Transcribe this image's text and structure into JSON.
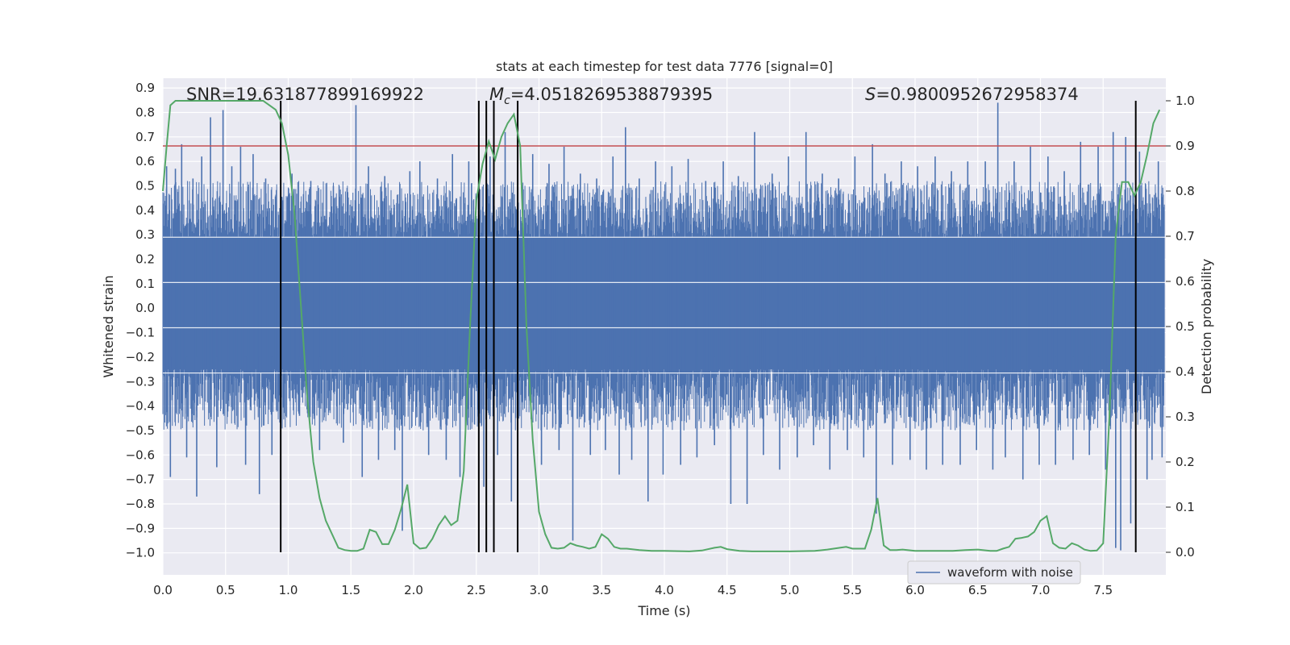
{
  "chart_data": {
    "type": "line",
    "title": "stats at each timestep for test data 7776 [signal=0]",
    "xlabel": "Time (s)",
    "ylabel_left": "Whitened strain",
    "ylabel_right": "Detection probability",
    "xlim": [
      0.0,
      8.0
    ],
    "ylim_left": [
      -1.09,
      0.94
    ],
    "ylim_right": [
      -0.05,
      1.05
    ],
    "x_ticks": [
      "0.0",
      "0.5",
      "1.0",
      "1.5",
      "2.0",
      "2.5",
      "3.0",
      "3.5",
      "4.0",
      "4.5",
      "5.0",
      "5.5",
      "6.0",
      "6.5",
      "7.0",
      "7.5"
    ],
    "x_tick_values": [
      0.0,
      0.5,
      1.0,
      1.5,
      2.0,
      2.5,
      3.0,
      3.5,
      4.0,
      4.5,
      5.0,
      5.5,
      6.0,
      6.5,
      7.0,
      7.5
    ],
    "y_left_ticks": [
      "0.9",
      "0.8",
      "0.7",
      "0.6",
      "0.5",
      "0.4",
      "0.3",
      "0.2",
      "0.1",
      "0.0",
      "−0.1",
      "−0.2",
      "−0.3",
      "−0.4",
      "−0.5",
      "−0.6",
      "−0.7",
      "−0.8",
      "−0.9",
      "−1.0"
    ],
    "y_left_tick_values": [
      0.9,
      0.8,
      0.7,
      0.6,
      0.5,
      0.4,
      0.3,
      0.2,
      0.1,
      0.0,
      -0.1,
      -0.2,
      -0.3,
      -0.4,
      -0.5,
      -0.6,
      -0.7,
      -0.8,
      -0.9,
      -1.0
    ],
    "y_right_ticks": [
      "1.0",
      "0.9",
      "0.8",
      "0.7",
      "0.6",
      "0.5",
      "0.4",
      "0.3",
      "0.2",
      "0.1",
      "0.0"
    ],
    "y_right_tick_values": [
      1.0,
      0.9,
      0.8,
      0.7,
      0.6,
      0.5,
      0.4,
      0.3,
      0.2,
      0.1,
      0.0
    ],
    "annotations": {
      "snr": "SNR=19.631877899169922",
      "mc_symbol": "M",
      "mc_sub": "c",
      "mc_value": "=4.0518269538879395",
      "s_symbol": "S",
      "s_value": "=0.9800952672958374"
    },
    "legend": [
      {
        "label": "waveform with noise",
        "color": "#4c72b0",
        "position": "lower-right"
      }
    ],
    "threshold_line": {
      "value_right": 0.9,
      "color": "#c44e52"
    },
    "vertical_lines_x": [
      0.94,
      2.52,
      2.58,
      2.64,
      2.83,
      7.76
    ],
    "waveform": {
      "name": "waveform with noise",
      "color": "#4c72b0",
      "dense_band": [
        -0.25,
        0.29
      ],
      "spikes": [
        {
          "x": 0.03,
          "y": 0.58
        },
        {
          "x": 0.06,
          "y": -0.69
        },
        {
          "x": 0.1,
          "y": 0.57
        },
        {
          "x": 0.15,
          "y": 0.67
        },
        {
          "x": 0.19,
          "y": -0.61
        },
        {
          "x": 0.24,
          "y": 0.53
        },
        {
          "x": 0.27,
          "y": -0.77
        },
        {
          "x": 0.31,
          "y": 0.62
        },
        {
          "x": 0.38,
          "y": 0.78
        },
        {
          "x": 0.43,
          "y": -0.65
        },
        {
          "x": 0.48,
          "y": 0.81
        },
        {
          "x": 0.55,
          "y": 0.58
        },
        {
          "x": 0.62,
          "y": 0.66
        },
        {
          "x": 0.66,
          "y": -0.64
        },
        {
          "x": 0.72,
          "y": 0.63
        },
        {
          "x": 0.77,
          "y": -0.76
        },
        {
          "x": 0.82,
          "y": 0.53
        },
        {
          "x": 0.87,
          "y": -0.6
        },
        {
          "x": 1.03,
          "y": 0.55
        },
        {
          "x": 1.09,
          "y": -0.44
        },
        {
          "x": 1.18,
          "y": 0.52
        },
        {
          "x": 1.25,
          "y": -0.58
        },
        {
          "x": 1.36,
          "y": 0.5
        },
        {
          "x": 1.44,
          "y": -0.55
        },
        {
          "x": 1.54,
          "y": 0.83
        },
        {
          "x": 1.59,
          "y": -0.69
        },
        {
          "x": 1.64,
          "y": 0.58
        },
        {
          "x": 1.72,
          "y": -0.62
        },
        {
          "x": 1.77,
          "y": 0.54
        },
        {
          "x": 1.85,
          "y": -0.58
        },
        {
          "x": 1.91,
          "y": -0.91
        },
        {
          "x": 1.97,
          "y": 0.56
        },
        {
          "x": 2.05,
          "y": 0.6
        },
        {
          "x": 2.12,
          "y": -0.6
        },
        {
          "x": 2.19,
          "y": 0.53
        },
        {
          "x": 2.26,
          "y": -0.62
        },
        {
          "x": 2.31,
          "y": 0.63
        },
        {
          "x": 2.37,
          "y": -0.69
        },
        {
          "x": 2.44,
          "y": 0.6
        },
        {
          "x": 2.56,
          "y": -0.73
        },
        {
          "x": 2.61,
          "y": 0.62
        },
        {
          "x": 2.67,
          "y": -0.6
        },
        {
          "x": 2.73,
          "y": 0.72
        },
        {
          "x": 2.78,
          "y": -0.79
        },
        {
          "x": 2.95,
          "y": 0.63
        },
        {
          "x": 3.02,
          "y": -0.64
        },
        {
          "x": 3.08,
          "y": 0.59
        },
        {
          "x": 3.16,
          "y": -0.58
        },
        {
          "x": 3.2,
          "y": 0.66
        },
        {
          "x": 3.27,
          "y": -0.95
        },
        {
          "x": 3.33,
          "y": 0.55
        },
        {
          "x": 3.41,
          "y": -0.6
        },
        {
          "x": 3.46,
          "y": 0.53
        },
        {
          "x": 3.53,
          "y": -0.58
        },
        {
          "x": 3.59,
          "y": 0.62
        },
        {
          "x": 3.64,
          "y": -0.68
        },
        {
          "x": 3.69,
          "y": 0.74
        },
        {
          "x": 3.74,
          "y": -0.62
        },
        {
          "x": 3.8,
          "y": 0.53
        },
        {
          "x": 3.87,
          "y": -0.79
        },
        {
          "x": 3.93,
          "y": 0.6
        },
        {
          "x": 3.99,
          "y": -0.68
        },
        {
          "x": 4.06,
          "y": 0.58
        },
        {
          "x": 4.13,
          "y": -0.64
        },
        {
          "x": 4.19,
          "y": 0.61
        },
        {
          "x": 4.26,
          "y": -0.61
        },
        {
          "x": 4.33,
          "y": 0.52
        },
        {
          "x": 4.4,
          "y": -0.56
        },
        {
          "x": 4.47,
          "y": 0.6
        },
        {
          "x": 4.53,
          "y": -0.8
        },
        {
          "x": 4.59,
          "y": 0.54
        },
        {
          "x": 4.66,
          "y": -0.8
        },
        {
          "x": 4.72,
          "y": 0.72
        },
        {
          "x": 4.79,
          "y": -0.6
        },
        {
          "x": 4.86,
          "y": 0.55
        },
        {
          "x": 4.92,
          "y": -0.66
        },
        {
          "x": 4.99,
          "y": 0.62
        },
        {
          "x": 5.06,
          "y": -0.61
        },
        {
          "x": 5.13,
          "y": 0.72
        },
        {
          "x": 5.19,
          "y": -0.56
        },
        {
          "x": 5.26,
          "y": 0.55
        },
        {
          "x": 5.32,
          "y": -0.66
        },
        {
          "x": 5.39,
          "y": 0.53
        },
        {
          "x": 5.46,
          "y": -0.58
        },
        {
          "x": 5.52,
          "y": 0.62
        },
        {
          "x": 5.59,
          "y": -0.61
        },
        {
          "x": 5.66,
          "y": 0.67
        },
        {
          "x": 5.69,
          "y": -0.84
        },
        {
          "x": 5.76,
          "y": 0.55
        },
        {
          "x": 5.82,
          "y": -0.64
        },
        {
          "x": 5.89,
          "y": 0.6
        },
        {
          "x": 5.96,
          "y": -0.62
        },
        {
          "x": 6.02,
          "y": 0.58
        },
        {
          "x": 6.09,
          "y": -0.66
        },
        {
          "x": 6.16,
          "y": 0.62
        },
        {
          "x": 6.22,
          "y": -0.64
        },
        {
          "x": 6.29,
          "y": 0.56
        },
        {
          "x": 6.36,
          "y": -0.64
        },
        {
          "x": 6.42,
          "y": 0.6
        },
        {
          "x": 6.49,
          "y": -0.58
        },
        {
          "x": 6.56,
          "y": 0.6
        },
        {
          "x": 6.62,
          "y": -0.66
        },
        {
          "x": 6.66,
          "y": 0.84
        },
        {
          "x": 6.72,
          "y": -0.61
        },
        {
          "x": 6.79,
          "y": 0.6
        },
        {
          "x": 6.86,
          "y": -0.7
        },
        {
          "x": 6.92,
          "y": 0.66
        },
        {
          "x": 6.99,
          "y": -0.64
        },
        {
          "x": 7.06,
          "y": 0.62
        },
        {
          "x": 7.12,
          "y": -0.64
        },
        {
          "x": 7.19,
          "y": 0.56
        },
        {
          "x": 7.26,
          "y": -0.62
        },
        {
          "x": 7.32,
          "y": 0.68
        },
        {
          "x": 7.39,
          "y": -0.6
        },
        {
          "x": 7.46,
          "y": 0.66
        },
        {
          "x": 7.52,
          "y": -0.66
        },
        {
          "x": 7.58,
          "y": 0.72
        },
        {
          "x": 7.6,
          "y": -0.98
        },
        {
          "x": 7.64,
          "y": -0.99
        },
        {
          "x": 7.68,
          "y": 0.7
        },
        {
          "x": 7.72,
          "y": -0.88
        },
        {
          "x": 7.79,
          "y": 0.64
        },
        {
          "x": 7.85,
          "y": -0.7
        },
        {
          "x": 7.89,
          "y": -0.62
        },
        {
          "x": 7.94,
          "y": 0.6
        },
        {
          "x": 7.97,
          "y": -0.61
        }
      ]
    },
    "probability": {
      "color": "#55a868",
      "x": [
        0.0,
        0.03,
        0.06,
        0.1,
        0.15,
        0.2,
        0.3,
        0.4,
        0.5,
        0.6,
        0.7,
        0.75,
        0.8,
        0.85,
        0.9,
        0.95,
        1.0,
        1.05,
        1.1,
        1.15,
        1.2,
        1.25,
        1.3,
        1.4,
        1.45,
        1.5,
        1.55,
        1.6,
        1.65,
        1.7,
        1.75,
        1.8,
        1.85,
        1.9,
        1.95,
        2.0,
        2.05,
        2.1,
        2.15,
        2.2,
        2.25,
        2.3,
        2.35,
        2.4,
        2.45,
        2.5,
        2.55,
        2.6,
        2.65,
        2.7,
        2.75,
        2.8,
        2.85,
        2.9,
        2.95,
        3.0,
        3.05,
        3.1,
        3.15,
        3.2,
        3.25,
        3.3,
        3.35,
        3.4,
        3.45,
        3.5,
        3.55,
        3.6,
        3.65,
        3.7,
        3.8,
        3.9,
        4.0,
        4.2,
        4.3,
        4.4,
        4.45,
        4.5,
        4.6,
        4.7,
        4.8,
        5.0,
        5.2,
        5.3,
        5.4,
        5.45,
        5.5,
        5.55,
        5.6,
        5.65,
        5.7,
        5.75,
        5.8,
        5.85,
        5.9,
        6.0,
        6.1,
        6.2,
        6.3,
        6.4,
        6.5,
        6.6,
        6.65,
        6.7,
        6.75,
        6.8,
        6.85,
        6.9,
        6.95,
        7.0,
        7.05,
        7.1,
        7.15,
        7.2,
        7.25,
        7.3,
        7.35,
        7.4,
        7.45,
        7.5,
        7.55,
        7.6,
        7.65,
        7.7,
        7.75,
        7.8,
        7.85,
        7.9,
        7.95
      ],
      "y": [
        0.8,
        0.9,
        0.99,
        1.0,
        1.0,
        1.0,
        1.0,
        1.0,
        1.0,
        1.0,
        1.0,
        1.0,
        1.0,
        0.99,
        0.98,
        0.95,
        0.88,
        0.75,
        0.55,
        0.35,
        0.2,
        0.12,
        0.07,
        0.01,
        0.005,
        0.003,
        0.003,
        0.008,
        0.05,
        0.045,
        0.018,
        0.018,
        0.05,
        0.095,
        0.15,
        0.02,
        0.008,
        0.01,
        0.03,
        0.06,
        0.08,
        0.06,
        0.07,
        0.18,
        0.5,
        0.78,
        0.86,
        0.91,
        0.87,
        0.92,
        0.95,
        0.97,
        0.9,
        0.5,
        0.25,
        0.09,
        0.04,
        0.01,
        0.008,
        0.01,
        0.02,
        0.015,
        0.012,
        0.008,
        0.012,
        0.04,
        0.03,
        0.012,
        0.008,
        0.008,
        0.005,
        0.003,
        0.003,
        0.002,
        0.004,
        0.01,
        0.012,
        0.007,
        0.003,
        0.002,
        0.002,
        0.002,
        0.003,
        0.006,
        0.01,
        0.012,
        0.008,
        0.008,
        0.008,
        0.05,
        0.12,
        0.015,
        0.005,
        0.005,
        0.006,
        0.003,
        0.003,
        0.003,
        0.003,
        0.005,
        0.006,
        0.003,
        0.003,
        0.008,
        0.012,
        0.03,
        0.032,
        0.035,
        0.045,
        0.07,
        0.08,
        0.02,
        0.01,
        0.008,
        0.02,
        0.015,
        0.006,
        0.003,
        0.004,
        0.02,
        0.3,
        0.7,
        0.82,
        0.82,
        0.79,
        0.82,
        0.88,
        0.95,
        0.98
      ]
    }
  }
}
